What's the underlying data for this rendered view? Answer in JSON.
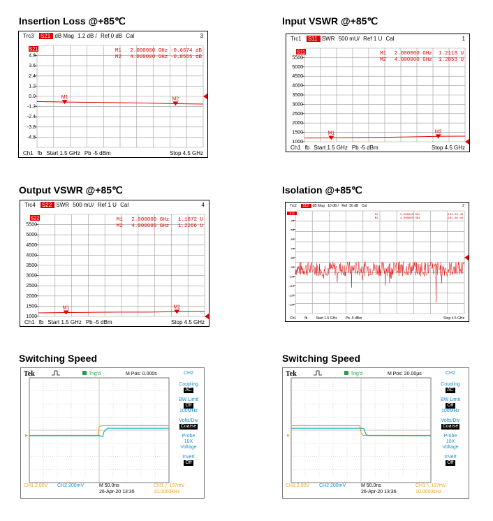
{
  "titles": {
    "p1": "Insertion Loss @+85℃",
    "p2": "Input VSWR @+85℃",
    "p3": "Output VSWR @+85℃",
    "p4": "Isolation @+85℃",
    "p5": "Switching Speed",
    "p6": "Switching Speed"
  },
  "colors": {
    "trace": "#e00000",
    "ch1": "#f0a020",
    "ch2": "#20b0b0",
    "side": "#1a8fd0",
    "grid": "#9a9a9a"
  },
  "chart_data": [
    {
      "type": "line",
      "id": "p1",
      "header": {
        "trc": "Trc3",
        "param": "S21",
        "fmt": "dB Mag",
        "scale": "1.2 dB /",
        "ref": "Ref 0 dB",
        "cal": "Cal",
        "num": "3"
      },
      "marker_readout": [
        {
          "name": "M1",
          "freq": "2.000000 GHz",
          "val": "-0.6674 dB"
        },
        {
          "name": "M2",
          "freq": "4.000000 GHz",
          "val": "-0.8565 dB"
        }
      ],
      "ytick_labels": [
        "4.8",
        "3.6",
        "2.4",
        "1.2",
        "0.0",
        "-1.2",
        "-2.4",
        "-3.6",
        "-4.8"
      ],
      "ylim": [
        -6,
        6
      ],
      "xlim": [
        1.5,
        4.5
      ],
      "series": [
        {
          "x": [
            1.5,
            1.8,
            2.0,
            2.5,
            3.0,
            3.5,
            4.0,
            4.5
          ],
          "y": [
            -0.62,
            -0.64,
            -0.67,
            -0.7,
            -0.74,
            -0.79,
            -0.86,
            -0.9
          ]
        }
      ],
      "markers": [
        {
          "label": "M1",
          "x": 2.0,
          "y": -0.6674
        },
        {
          "label": "M2",
          "x": 4.0,
          "y": -0.8565
        }
      ],
      "ref_value": 0,
      "footer": {
        "ch": "Ch1",
        "fb": "fb",
        "start": "Start  1.5 GHz",
        "pb": "Pb   -5 dBm",
        "stop": "Stop  4.5 GHz"
      }
    },
    {
      "type": "line",
      "id": "p2",
      "header": {
        "trc": "Trc1",
        "param": "S11",
        "fmt": "SWR",
        "scale": "500 mU/",
        "ref": "Ref 1 U",
        "cal": "Cal",
        "num": "1"
      },
      "marker_readout": [
        {
          "name": "M1",
          "freq": "2.000000 GHz",
          "val": "1.2118 U"
        },
        {
          "name": "M2",
          "freq": "4.000000 GHz",
          "val": "1.2859 U"
        }
      ],
      "ytick_labels": [
        "5500",
        "5000",
        "4500",
        "4000",
        "3500",
        "3000",
        "2500",
        "2000",
        "1500",
        "1000"
      ],
      "ylim": [
        1,
        6
      ],
      "xlim": [
        1.5,
        4.5
      ],
      "series": [
        {
          "x": [
            1.5,
            2.0,
            2.5,
            3.0,
            3.5,
            4.0,
            4.5
          ],
          "y": [
            1.2,
            1.21,
            1.23,
            1.24,
            1.26,
            1.29,
            1.3
          ]
        }
      ],
      "markers": [
        {
          "label": "M1",
          "x": 2.0,
          "y": 1.2118
        },
        {
          "label": "M2",
          "x": 4.0,
          "y": 1.2859
        }
      ],
      "footer": {
        "ch": "Ch1",
        "fb": "fb",
        "start": "Start  1.5 GHz",
        "pb": "Pb   -5 dBm",
        "stop": "Stop  4.5 GHz"
      }
    },
    {
      "type": "line",
      "id": "p3",
      "header": {
        "trc": "Trc4",
        "param": "S22",
        "fmt": "SWR",
        "scale": "500 mU/",
        "ref": "Ref 1 U",
        "cal": "Cal",
        "num": "4"
      },
      "marker_readout": [
        {
          "name": "M1",
          "freq": "2.000000 GHz",
          "val": "1.1872 U"
        },
        {
          "name": "M2",
          "freq": "4.000000 GHz",
          "val": "1.2266 U"
        }
      ],
      "ytick_labels": [
        "5500",
        "5000",
        "4500",
        "4000",
        "3500",
        "3000",
        "2500",
        "2000",
        "1500",
        "1000"
      ],
      "ylim": [
        1,
        6
      ],
      "xlim": [
        1.5,
        4.5
      ],
      "series": [
        {
          "x": [
            1.5,
            2.0,
            2.5,
            3.0,
            3.5,
            4.0,
            4.5
          ],
          "y": [
            1.17,
            1.19,
            1.2,
            1.21,
            1.21,
            1.23,
            1.24
          ]
        }
      ],
      "markers": [
        {
          "label": "M1",
          "x": 2.0,
          "y": 1.1872
        },
        {
          "label": "M2",
          "x": 4.0,
          "y": 1.2266
        }
      ],
      "footer": {
        "ch": "Ch1",
        "fb": "fb",
        "start": "Start  1.5 GHz",
        "pb": "Pb   -5 dBm",
        "stop": "Stop  4.5 GHz"
      }
    },
    {
      "type": "line",
      "id": "p4",
      "header": {
        "trc": "Trc2",
        "param": "S12",
        "fmt": "dB Mag",
        "scale": "10 dB /",
        "ref": "Ref -30 dB",
        "cal": "Cal",
        "num": "2"
      },
      "marker_readout": [
        {
          "name": "M1",
          "freq": "2.000000 GHz",
          "val": "-101.30 dB"
        },
        {
          "name": "M2",
          "freq": "4.000000 GHz",
          "val": "-101.96 dB"
        }
      ],
      "ytick_labels": [
        "-40",
        "-50",
        "-60",
        "-70",
        "-80",
        "-90",
        "-100",
        "-110",
        "-120",
        "-130"
      ],
      "ylim": [
        -140,
        -30
      ],
      "xlim": [
        1.5,
        4.5
      ],
      "noise": {
        "mean": -92,
        "spread": 8,
        "spikes": [
          [
            2.5,
            -112
          ],
          [
            3.1,
            -110
          ],
          [
            4.0,
            -128
          ]
        ]
      },
      "footer": {
        "ch": "Ch1",
        "fb": "fb",
        "start": "Start  1.5 GHz",
        "pb": "Pb   -5 dBm",
        "stop": "Stop  4.5 GHz"
      }
    },
    {
      "type": "line",
      "id": "p5",
      "scope": {
        "brand": "Tek",
        "trig": "Trig'd",
        "mpos": "M Pos: 0.000s",
        "ch": "CH2",
        "side": [
          {
            "t": "Coupling",
            "v": "AC"
          },
          {
            "t": "BW Limit",
            "v": "Off",
            "extra": "100MHz"
          },
          {
            "t": "Volts/Div",
            "v": "Coarse"
          },
          {
            "t": "Probe",
            "extra2": "10X",
            "extra3": "Voltage"
          },
          {
            "t": "Invert",
            "v": "Off"
          }
        ],
        "bottom": {
          "ch1": "CH1  2.00V",
          "ch2": "CH2  200mV",
          "m": "M 50.0ns",
          "date": "26-Apr-20 13:35",
          "trig": "CH1  ╱  107mV",
          "freq": "10.0000kHz"
        }
      },
      "series": [
        {
          "name": "CH1",
          "x": [
            -5,
            -0.05,
            0,
            0.3,
            5
          ],
          "y": [
            -0.4,
            -0.4,
            0.3,
            0.35,
            0.35
          ]
        },
        {
          "name": "CH2",
          "x": [
            -5,
            0.05,
            0.25,
            0.35,
            0.6,
            5
          ],
          "y": [
            -0.42,
            -0.42,
            -0.5,
            -0.1,
            0.15,
            0.15
          ]
        }
      ]
    },
    {
      "type": "line",
      "id": "p6",
      "scope": {
        "brand": "Tek",
        "trig": "Trig'd",
        "mpos": "M Pos: 20.00µs",
        "ch": "CH2",
        "side": [
          {
            "t": "Coupling",
            "v": "AC"
          },
          {
            "t": "BW Limit",
            "v": "Off",
            "extra": "100MHz"
          },
          {
            "t": "Volts/Div",
            "v": "Coarse"
          },
          {
            "t": "Probe",
            "extra2": "10X",
            "extra3": "Voltage"
          },
          {
            "t": "Invert",
            "v": "Off"
          }
        ],
        "bottom": {
          "ch1": "CH1  2.00V",
          "ch2": "CH2  200mV",
          "m": "M 50.0ns",
          "date": "26-Apr-20 13:36",
          "trig": "CH1  ╲  107mV",
          "freq": "10.0000kHz"
        }
      },
      "series": [
        {
          "name": "CH1",
          "x": [
            -5,
            -0.1,
            0,
            0.15,
            5
          ],
          "y": [
            0.35,
            0.35,
            -0.2,
            -0.4,
            -0.4
          ]
        },
        {
          "name": "CH2",
          "x": [
            -5,
            0.1,
            0.2,
            0.35,
            0.5,
            5
          ],
          "y": [
            0.15,
            0.15,
            0.12,
            -0.3,
            -0.4,
            -0.42
          ]
        }
      ]
    }
  ]
}
